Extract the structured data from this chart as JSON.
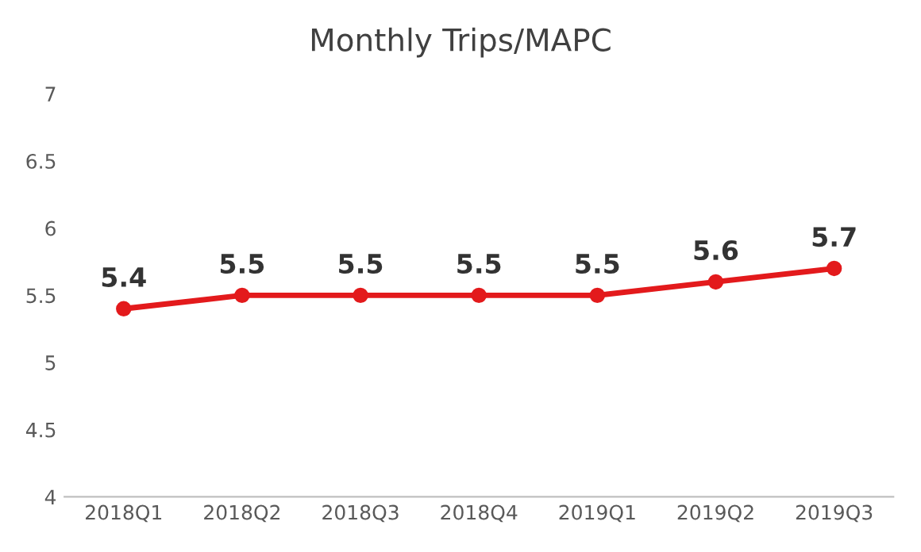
{
  "chart_data": {
    "type": "line",
    "title": "Monthly Trips/MAPC",
    "categories": [
      "2018Q1",
      "2018Q2",
      "2018Q3",
      "2018Q4",
      "2019Q1",
      "2019Q2",
      "2019Q3"
    ],
    "series": [
      {
        "color": "#e31a1c",
        "values": [
          5.4,
          5.5,
          5.5,
          5.5,
          5.5,
          5.6,
          5.7
        ]
      }
    ],
    "ylim": [
      4,
      7
    ],
    "yticks": [
      4,
      4.5,
      5,
      5.5,
      6,
      6.5,
      7
    ],
    "data_labels": true,
    "grid": false,
    "legend": false,
    "marker": "circle",
    "line_style": "solid"
  }
}
